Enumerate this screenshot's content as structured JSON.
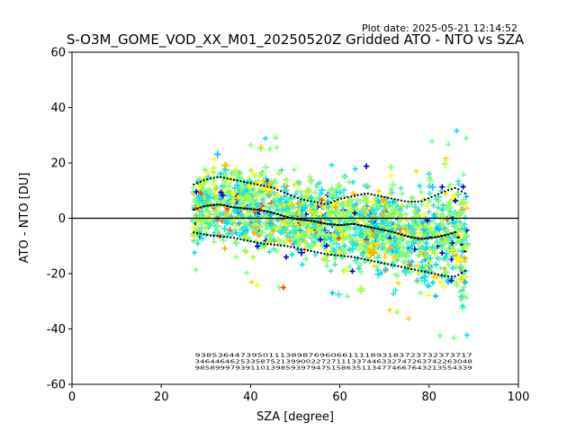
{
  "chart_data": {
    "type": "scatter",
    "title": "S-O3M_GOME_VOD_XX_M01_20250520Z Gridded ATO - NTO vs SZA",
    "plot_date": "Plot date: 2025-05-21 12:14:52",
    "xlabel": "SZA [degree]",
    "ylabel": "ATO - NTO [DU]",
    "xlim": [
      0,
      100
    ],
    "ylim": [
      -60,
      60
    ],
    "xticks": [
      0,
      20,
      40,
      60,
      80,
      100
    ],
    "yticks": [
      -60,
      -40,
      -20,
      0,
      20,
      40,
      60
    ],
    "zero_line": 0,
    "scatter_x_range": [
      27,
      88.5
    ],
    "scatter_colors": [
      "#0000cd",
      "#00bfff",
      "#00e5ee",
      "#40e0d0",
      "#7fff7f",
      "#adff2f",
      "#ffff00",
      "#ffd700",
      "#ffa500",
      "#ff4500"
    ],
    "upper_band": {
      "x": [
        27,
        30,
        33,
        36,
        39,
        42,
        45,
        48,
        51,
        54,
        57,
        60,
        63,
        66,
        69,
        72,
        75,
        78,
        81,
        84,
        86,
        88
      ],
      "y": [
        12,
        14,
        15,
        14,
        13,
        12,
        11,
        9,
        7,
        6,
        5,
        7,
        8,
        9,
        8,
        7,
        6,
        6,
        8,
        10,
        11,
        9
      ]
    },
    "median": {
      "x": [
        27,
        30,
        33,
        36,
        39,
        42,
        45,
        48,
        51,
        54,
        57,
        60,
        63,
        66,
        69,
        72,
        75,
        78,
        81,
        84,
        86,
        88
      ],
      "y": [
        3,
        4.5,
        5,
        4,
        3.5,
        3,
        2,
        0.5,
        -0.5,
        -1,
        -2,
        -2.5,
        -2,
        -3,
        -4,
        -5,
        -6.5,
        -7.5,
        -7,
        -6,
        -5,
        -12
      ]
    },
    "lower_band": {
      "x": [
        27,
        30,
        33,
        36,
        39,
        42,
        45,
        48,
        51,
        54,
        57,
        60,
        63,
        66,
        69,
        72,
        75,
        78,
        81,
        84,
        86,
        88
      ],
      "y": [
        -5,
        -6,
        -6.5,
        -7,
        -8,
        -9,
        -9.5,
        -10,
        -11,
        -12,
        -13,
        -13.5,
        -14,
        -15,
        -16,
        -17,
        -18,
        -19,
        -20,
        -21,
        -21,
        -19
      ]
    },
    "stats_rows": [
      "9385364473950111389876960661111893183723732373717",
      "3464464625335875213990022727111337446332747263742263048",
      "9858999793911013985939794751586351134774667643213554339"
    ]
  }
}
